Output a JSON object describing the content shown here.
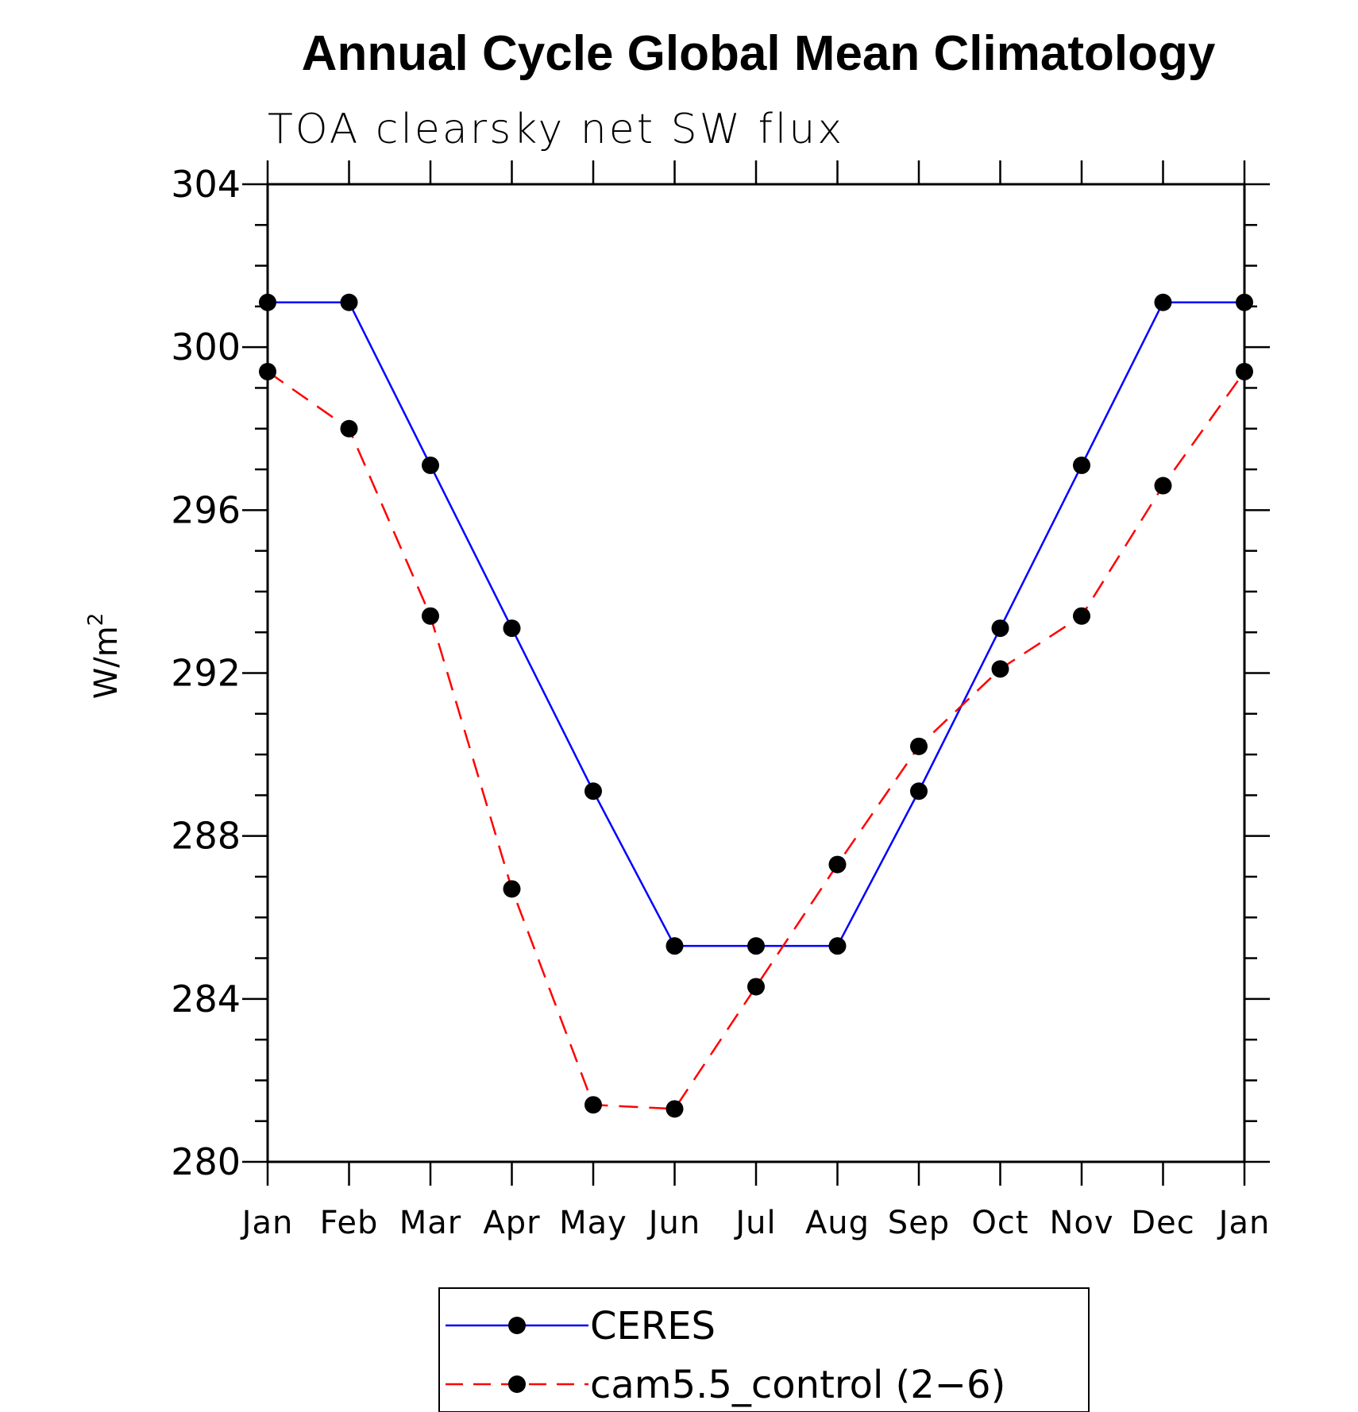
{
  "chart_data": {
    "type": "line",
    "title": "Annual Cycle Global Mean Climatology",
    "subtitle": "TOA clearsky net SW flux",
    "ylabel": "W/m",
    "ylabel_superscript": "2",
    "xlabel": "",
    "categories": [
      "Jan",
      "Feb",
      "Mar",
      "Apr",
      "May",
      "Jun",
      "Jul",
      "Aug",
      "Sep",
      "Oct",
      "Nov",
      "Dec",
      "Jan"
    ],
    "ylim": [
      280,
      304
    ],
    "yticks": [
      280,
      284,
      288,
      292,
      296,
      300,
      304
    ],
    "y_minor_step": 1,
    "grid": false,
    "legend_position": "bottom",
    "series": [
      {
        "name": "CERES",
        "color": "#0000ff",
        "dash": "solid",
        "marker": "circle",
        "values": [
          301.1,
          301.1,
          297.1,
          293.1,
          289.1,
          285.3,
          285.3,
          285.3,
          289.1,
          293.1,
          297.1,
          301.1,
          301.1
        ]
      },
      {
        "name": "cam5.5_control (2−6)",
        "color": "#ff0000",
        "dash": "dashed",
        "marker": "circle",
        "values": [
          299.4,
          298.0,
          293.4,
          286.7,
          281.4,
          281.3,
          284.3,
          287.3,
          290.2,
          292.1,
          293.4,
          296.6,
          299.4
        ]
      }
    ]
  }
}
